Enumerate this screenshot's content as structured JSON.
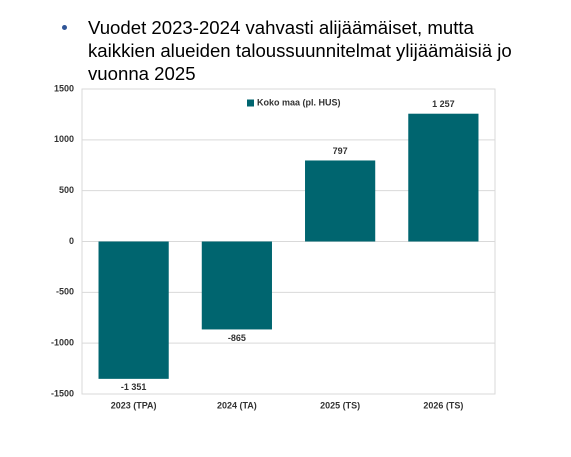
{
  "chart_data": {
    "type": "bar",
    "title": "Vuodet 2023-2024 vahvasti alijäämäiset, mutta kaikkien alueiden taloussuunnitelmat ylijäämäisiä jo vuonna 2025",
    "categories": [
      "2023 (TPA)",
      "2024 (TA)",
      "2025 (TS)",
      "2026 (TS)"
    ],
    "series": [
      {
        "name": "Koko maa (pl. HUS)",
        "color": "#00656f",
        "values": [
          -1351,
          -865,
          797,
          1257
        ],
        "value_labels": [
          "-1 351",
          "-865",
          "797",
          "1 257"
        ]
      }
    ],
    "ylim": [
      -1500,
      1500
    ],
    "yticks": [
      -1500,
      -1000,
      -500,
      0,
      500,
      1000,
      1500
    ],
    "grid": true,
    "legend": "top"
  }
}
